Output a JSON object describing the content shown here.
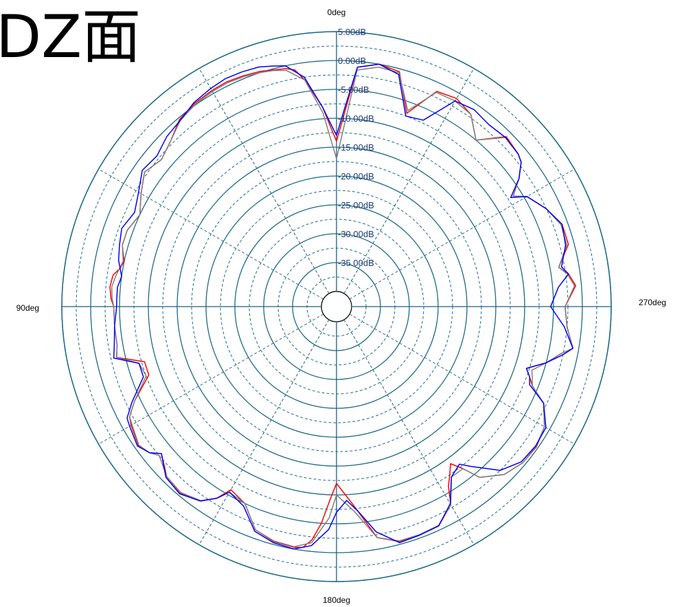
{
  "title": "DZ面",
  "colors": {
    "ring": "#1d6a8a",
    "axis": "#1d5f82",
    "series": [
      "#ff0000",
      "#808080",
      "#0000ff"
    ]
  },
  "chart_data": {
    "type": "polar",
    "title": "DZ面",
    "angle_labels": [
      {
        "angle": 0,
        "label": "0deg"
      },
      {
        "angle": 90,
        "label": "90deg"
      },
      {
        "angle": 180,
        "label": "180deg"
      },
      {
        "angle": 270,
        "label": "270deg"
      }
    ],
    "angle_direction": "counterclockwise from top",
    "radial_ticks": [
      5,
      0,
      -5,
      -10,
      -15,
      -20,
      -25,
      -30,
      -35
    ],
    "radial_tick_labels": [
      "5.00dB",
      "0.00dB",
      "-5.00dB",
      "-10.00dB",
      "-15.00dB",
      "-20.00dB",
      "-25.00dB",
      "-30.00dB",
      "-35.00dB"
    ],
    "rlim": [
      -40,
      5
    ],
    "grid": true,
    "series": [
      {
        "color": "#ff0000",
        "angles": [
          0,
          4,
          8,
          10,
          12,
          15,
          18,
          22,
          26,
          30,
          35,
          40,
          45,
          50,
          55,
          60,
          65,
          70,
          74,
          76,
          78,
          80,
          82,
          85,
          88,
          90,
          95,
          100,
          103,
          106,
          110,
          115,
          118,
          120,
          125,
          128,
          130,
          135,
          140,
          145,
          148,
          150,
          155,
          160,
          165,
          170,
          172,
          174,
          176,
          178,
          180,
          185,
          190,
          195,
          200,
          205,
          210,
          212,
          214,
          216,
          218,
          220,
          225,
          230,
          235,
          240,
          245,
          248,
          250,
          252,
          255,
          258,
          260,
          265,
          270,
          275,
          278,
          280,
          285,
          290,
          295,
          300,
          302,
          305,
          308,
          310,
          315,
          320,
          325,
          330,
          335,
          340,
          345,
          350,
          355,
          360
        ],
        "values": [
          -14,
          -8,
          -3,
          -1,
          -0.5,
          -0.2,
          0.2,
          0.5,
          0.7,
          0.6,
          0.3,
          -0.3,
          -2,
          -3,
          -2,
          -3.5,
          -5,
          -4,
          -4,
          -4.5,
          -5,
          -4.5,
          -3.5,
          -3.2,
          -3.5,
          -4,
          -4,
          -4,
          -3.5,
          -8,
          -8,
          -4,
          -2,
          -1.5,
          -0.7,
          -1.5,
          -3,
          -1,
          -0.5,
          -1.5,
          -3.5,
          -6,
          -5,
          -1.5,
          -0.5,
          -0.3,
          -0.5,
          -2,
          -5,
          -9,
          -12,
          -8,
          -2,
          -0.5,
          -0.5,
          -0.7,
          -3,
          -6,
          -7.5,
          -9,
          -7,
          -4,
          -1.5,
          -0.5,
          -0.3,
          -1,
          -3,
          -6,
          -7,
          -8,
          -5,
          -3,
          -1,
          -2.5,
          -3,
          -1,
          -2,
          -3.5,
          -1,
          -1,
          -2.5,
          -4.5,
          -6.5,
          -4,
          -2,
          -1.5,
          -1,
          -5,
          -2,
          -1,
          -1.5,
          -7,
          -0.5,
          0,
          -1,
          -14
        ]
      },
      {
        "color": "#808080",
        "angles": [
          0,
          4,
          8,
          12,
          15,
          18,
          22,
          26,
          30,
          35,
          40,
          45,
          50,
          55,
          60,
          65,
          70,
          74,
          78,
          82,
          85,
          88,
          90,
          95,
          100,
          103,
          106,
          110,
          115,
          118,
          120,
          125,
          128,
          130,
          135,
          140,
          145,
          148,
          150,
          155,
          160,
          165,
          170,
          174,
          178,
          180,
          185,
          190,
          195,
          200,
          205,
          210,
          214,
          218,
          220,
          225,
          230,
          235,
          240,
          245,
          248,
          250,
          252,
          255,
          258,
          260,
          265,
          270,
          275,
          278,
          280,
          285,
          290,
          295,
          300,
          302,
          305,
          308,
          310,
          315,
          320,
          325,
          330,
          335,
          340,
          345,
          350,
          355,
          360
        ],
        "values": [
          -17,
          -9,
          -3,
          -0.8,
          -0.3,
          0,
          0.3,
          0.5,
          0.4,
          0.1,
          -0.5,
          -2,
          -3,
          -2,
          -3.5,
          -5,
          -4,
          -4,
          -4.8,
          -4,
          -3.5,
          -3.7,
          -4,
          -4,
          -4,
          -3.5,
          -7,
          -7.5,
          -4,
          -2,
          -1.7,
          -0.8,
          -1.5,
          -2.5,
          -1,
          -0.6,
          -1.6,
          -3.5,
          -5.5,
          -5,
          -1.5,
          -0.6,
          -0.4,
          -1.5,
          -6,
          -10,
          -7,
          -2,
          -0.6,
          -0.6,
          -0.8,
          -3,
          -7,
          -7,
          -4,
          -1.5,
          -0.5,
          -0.4,
          -1,
          -3,
          -6,
          -6.5,
          -7,
          -5,
          -3,
          -1,
          -2.5,
          -3,
          -1.2,
          -2.2,
          -3.5,
          -1.3,
          -1.2,
          -2.5,
          -4.5,
          -6.5,
          -4,
          -2,
          -1.5,
          -1.2,
          -5,
          -2,
          -1.5,
          -1.7,
          -6.5,
          -0.7,
          -0.5,
          -1.5,
          -17
        ]
      },
      {
        "color": "#0000ff",
        "angles": [
          0,
          4,
          8,
          12,
          15,
          18,
          22,
          26,
          30,
          35,
          40,
          45,
          50,
          55,
          60,
          65,
          70,
          74,
          78,
          82,
          85,
          88,
          90,
          95,
          100,
          103,
          106,
          110,
          115,
          118,
          120,
          125,
          128,
          130,
          135,
          140,
          145,
          148,
          150,
          155,
          160,
          165,
          170,
          174,
          178,
          180,
          183,
          186,
          190,
          195,
          200,
          205,
          210,
          214,
          218,
          220,
          225,
          230,
          235,
          240,
          245,
          248,
          250,
          252,
          255,
          258,
          260,
          265,
          270,
          275,
          278,
          280,
          285,
          290,
          295,
          300,
          302,
          305,
          308,
          310,
          315,
          320,
          325,
          330,
          335,
          340,
          345,
          350,
          355,
          358,
          360
        ],
        "values": [
          -13,
          -8,
          -2.5,
          0,
          0.5,
          1,
          1.2,
          1.3,
          1,
          0.5,
          -0.5,
          -1,
          -2,
          -1.5,
          -3,
          -4,
          -3,
          -3.5,
          -4,
          -5,
          -4.5,
          -4.5,
          -4.5,
          -4,
          -3.5,
          -3,
          -7,
          -7,
          -3.5,
          -1.5,
          -1.2,
          -0.5,
          -1.5,
          -3,
          -0.8,
          -0.3,
          -1.5,
          -3.5,
          -5.5,
          -4.5,
          -1.2,
          -0.3,
          0,
          -1,
          -4,
          -7,
          -9,
          -7,
          -3,
          -0.3,
          -0.5,
          -0.7,
          -3.2,
          -7,
          -8,
          -6.5,
          -2.5,
          -0.8,
          -0.5,
          -0.7,
          -3,
          -6.5,
          -7,
          -8,
          -5,
          -2.5,
          -1,
          -3,
          -5.5,
          -4,
          -2,
          -3,
          -1.5,
          -1,
          -2.5,
          -4.5,
          -7,
          -4,
          -2,
          -1.5,
          -1.2,
          -1.5,
          -1,
          -1.5,
          -7,
          -7.5,
          -1,
          0,
          -1,
          -9,
          -13
        ]
      }
    ]
  }
}
